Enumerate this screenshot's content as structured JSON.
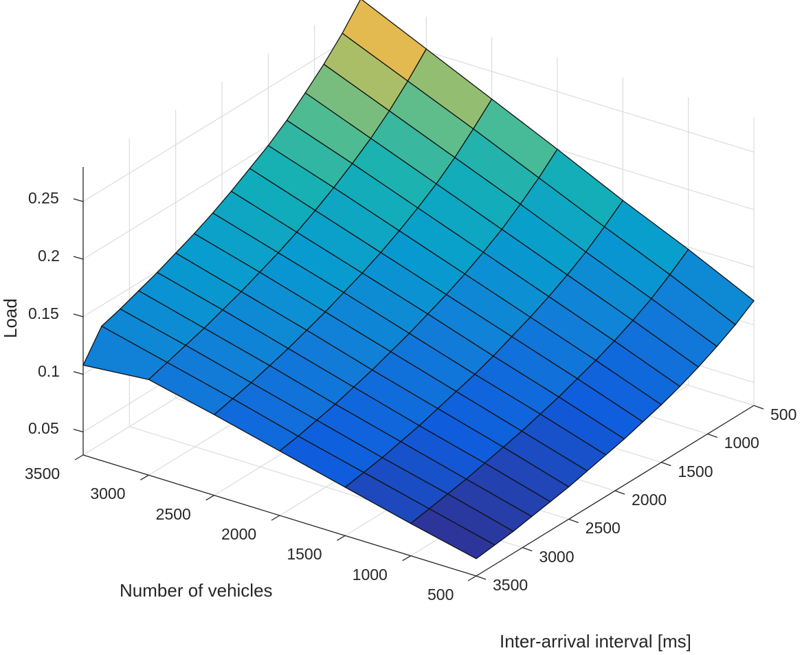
{
  "chart_data": {
    "type": "surface3d",
    "title": "",
    "xlabel": "Number of vehicles",
    "ylabel": "Inter-arrival interval [ms]",
    "zlabel": "Load",
    "x_ticks": [
      "3500",
      "3000",
      "2500",
      "2000",
      "1500",
      "1000",
      "500"
    ],
    "y_ticks": [
      "500",
      "1000",
      "1500",
      "2000",
      "2500",
      "3000",
      "3500"
    ],
    "z_ticks": [
      "0.05",
      "0.1",
      "0.15",
      "0.2",
      "0.25"
    ],
    "zlim": [
      0.03,
      0.28
    ],
    "grid": true,
    "colormap": "parula",
    "x": [
      500,
      1000,
      1500,
      2000,
      2500,
      3000,
      3500
    ],
    "y": [
      500,
      700,
      900,
      1100,
      1300,
      1500,
      1700,
      1900,
      2100,
      2300,
      2500,
      2700,
      2900,
      3100,
      3300,
      3500
    ],
    "z": [
      [
        0.121,
        0.11,
        0.101,
        0.093,
        0.086,
        0.08,
        0.075,
        0.07,
        0.066,
        0.062,
        0.058,
        0.055,
        0.052,
        0.049,
        0.047,
        0.045
      ],
      [
        0.148,
        0.136,
        0.125,
        0.116,
        0.108,
        0.101,
        0.095,
        0.089,
        0.084,
        0.079,
        0.075,
        0.071,
        0.067,
        0.064,
        0.061,
        0.058
      ],
      [
        0.173,
        0.16,
        0.148,
        0.138,
        0.129,
        0.121,
        0.114,
        0.107,
        0.101,
        0.096,
        0.091,
        0.086,
        0.082,
        0.078,
        0.075,
        0.072
      ],
      [
        0.2,
        0.185,
        0.172,
        0.16,
        0.15,
        0.141,
        0.133,
        0.126,
        0.119,
        0.113,
        0.107,
        0.102,
        0.097,
        0.093,
        0.089,
        0.086
      ],
      [
        0.226,
        0.21,
        0.195,
        0.182,
        0.171,
        0.161,
        0.152,
        0.144,
        0.137,
        0.13,
        0.124,
        0.118,
        0.113,
        0.108,
        0.104,
        0.1
      ],
      [
        0.252,
        0.234,
        0.218,
        0.204,
        0.192,
        0.181,
        0.171,
        0.162,
        0.154,
        0.147,
        0.14,
        0.134,
        0.128,
        0.123,
        0.118,
        0.113
      ],
      [
        0.278,
        0.258,
        0.241,
        0.226,
        0.212,
        0.2,
        0.19,
        0.18,
        0.171,
        0.163,
        0.156,
        0.149,
        0.143,
        0.137,
        0.132,
        0.108
      ]
    ]
  },
  "axes": {
    "z_label": "Load",
    "x_label": "Number of vehicles",
    "y_label": "Inter-arrival interval [ms]"
  }
}
